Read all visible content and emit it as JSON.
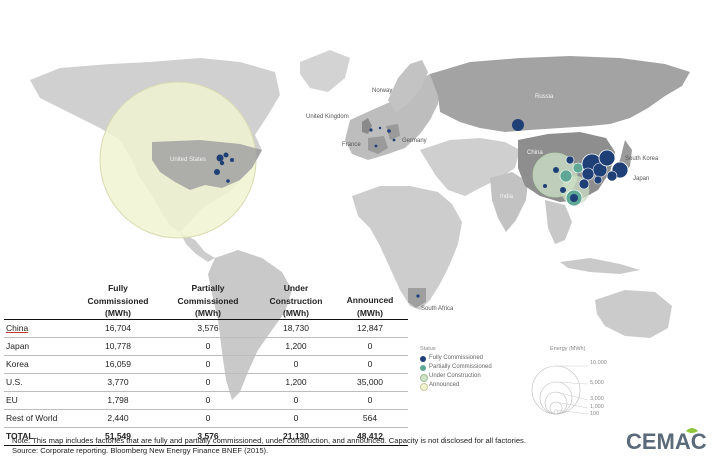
{
  "map": {
    "labels": {
      "russia": "Russia",
      "norway": "Norway",
      "uk": "United Kingdom",
      "france": "France",
      "germany": "Germany",
      "south_korea": "South Korea",
      "japan": "Japan",
      "india": "India",
      "south_africa": "South Africa",
      "us": "United States",
      "china": "China"
    },
    "colors": {
      "fully": "#1f3f77",
      "partially": "#5fa895",
      "under_construction": "#cfe3c8",
      "announced": "#f1f3d2",
      "land": "#c7c7c7",
      "land_dark": "#9a9a9a"
    }
  },
  "table": {
    "headers": [
      "",
      "Fully Commissioned (MWh)",
      "Partially Commissioned (MWh)",
      "Under Construction (MWh)",
      "Announced (MWh)"
    ],
    "header_lines": [
      [
        ""
      ],
      [
        "Fully",
        "Commissioned",
        "(MWh)"
      ],
      [
        "Partially",
        "Commissioned",
        "(MWh)"
      ],
      [
        "Under",
        "Construction",
        "(MWh)"
      ],
      [
        "Announced",
        "(MWh)"
      ]
    ],
    "rows": [
      [
        "China",
        "16,704",
        "3,576",
        "18,730",
        "12,847"
      ],
      [
        "Japan",
        "10,778",
        "0",
        "1,200",
        "0"
      ],
      [
        "Korea",
        "16,059",
        "0",
        "0",
        "0"
      ],
      [
        "U.S.",
        "3,770",
        "0",
        "1,200",
        "35,000"
      ],
      [
        "EU",
        "1,798",
        "0",
        "0",
        "0"
      ],
      [
        "Rest of World",
        "2,440",
        "0",
        "0",
        "564"
      ]
    ],
    "total": [
      "TOTAL",
      "51,549",
      "3,576",
      "21,130",
      "48,412"
    ]
  },
  "legend": {
    "title": "Status",
    "items": [
      {
        "label": "Fully Commissioned",
        "color": "#1f3f77"
      },
      {
        "label": "Partially Commissioned",
        "color": "#5fa895"
      },
      {
        "label": "Under Construction",
        "color": "#cfe3c8"
      },
      {
        "label": "Announced",
        "color": "#f1f3d2"
      }
    ]
  },
  "size_legend": {
    "title": "Energy (MWh)",
    "values": [
      "10,000",
      "5,000",
      "3,000",
      "1,000",
      "100"
    ]
  },
  "footer": {
    "note": "Note: This map includes factories that are fully and partially commissioned, under construction, and announced. Capacity is not disclosed for all factories.",
    "source": "Source: Corporate reporting. Bloomberg New Energy Finance BNEF (2015)."
  },
  "logo": {
    "text": "CEMAC",
    "brand_color": "#5a6a7a",
    "accent_color": "#8cc63f"
  }
}
